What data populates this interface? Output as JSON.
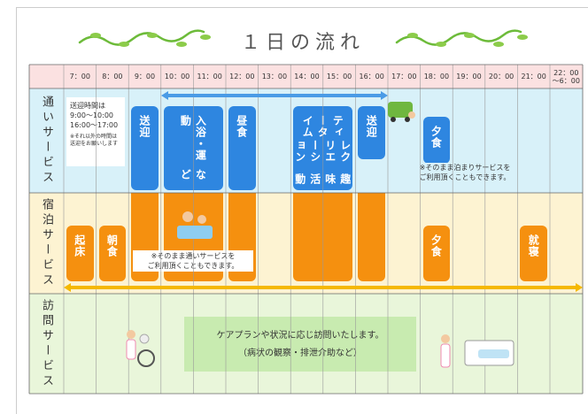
{
  "title": "１日の流れ",
  "times": [
    "7：00",
    "8：00",
    "9：00",
    "10：00",
    "11：00",
    "12：00",
    "13：00",
    "14：00",
    "15：00",
    "16：00",
    "17：00",
    "18：00",
    "19：00",
    "20：00",
    "21：00",
    "22：00 ～6：00"
  ],
  "rows": [
    {
      "label": "通いサービス"
    },
    {
      "label": "宿泊サービス"
    },
    {
      "label": "訪問サービス"
    }
  ],
  "day_service": {
    "pickup_note": [
      "送迎時間は",
      "9:00～10:00",
      "16:00～17:00"
    ],
    "pickup_subnote": "※それ以外の時間は送迎をお願いします",
    "blocks": [
      {
        "lines": [
          "送迎"
        ]
      },
      {
        "lines": [
          "入浴・運動",
          "など"
        ]
      },
      {
        "lines": [
          "昼食"
        ]
      },
      {
        "lines": [
          "ティータイム",
          "レクリエーション",
          "趣味活動"
        ]
      },
      {
        "lines": [
          "送迎"
        ]
      },
      {
        "lines": [
          "夕食"
        ]
      }
    ],
    "note": [
      "※そのまま泊まりサービスを",
      "ご利用頂くこともできます。"
    ]
  },
  "stay_service": {
    "blocks": [
      {
        "lines": [
          "起床"
        ]
      },
      {
        "lines": [
          "朝食"
        ]
      },
      {
        "lines": [
          "夕食"
        ]
      },
      {
        "lines": [
          "就寝"
        ]
      }
    ],
    "note": [
      "※そのまま通いサービスを",
      "ご利用頂くこともできます。"
    ]
  },
  "visit_service": {
    "lines": [
      "ケアプランや状況に応じ訪問いたします。",
      "（病状の観察・排泄介助など）"
    ]
  }
}
